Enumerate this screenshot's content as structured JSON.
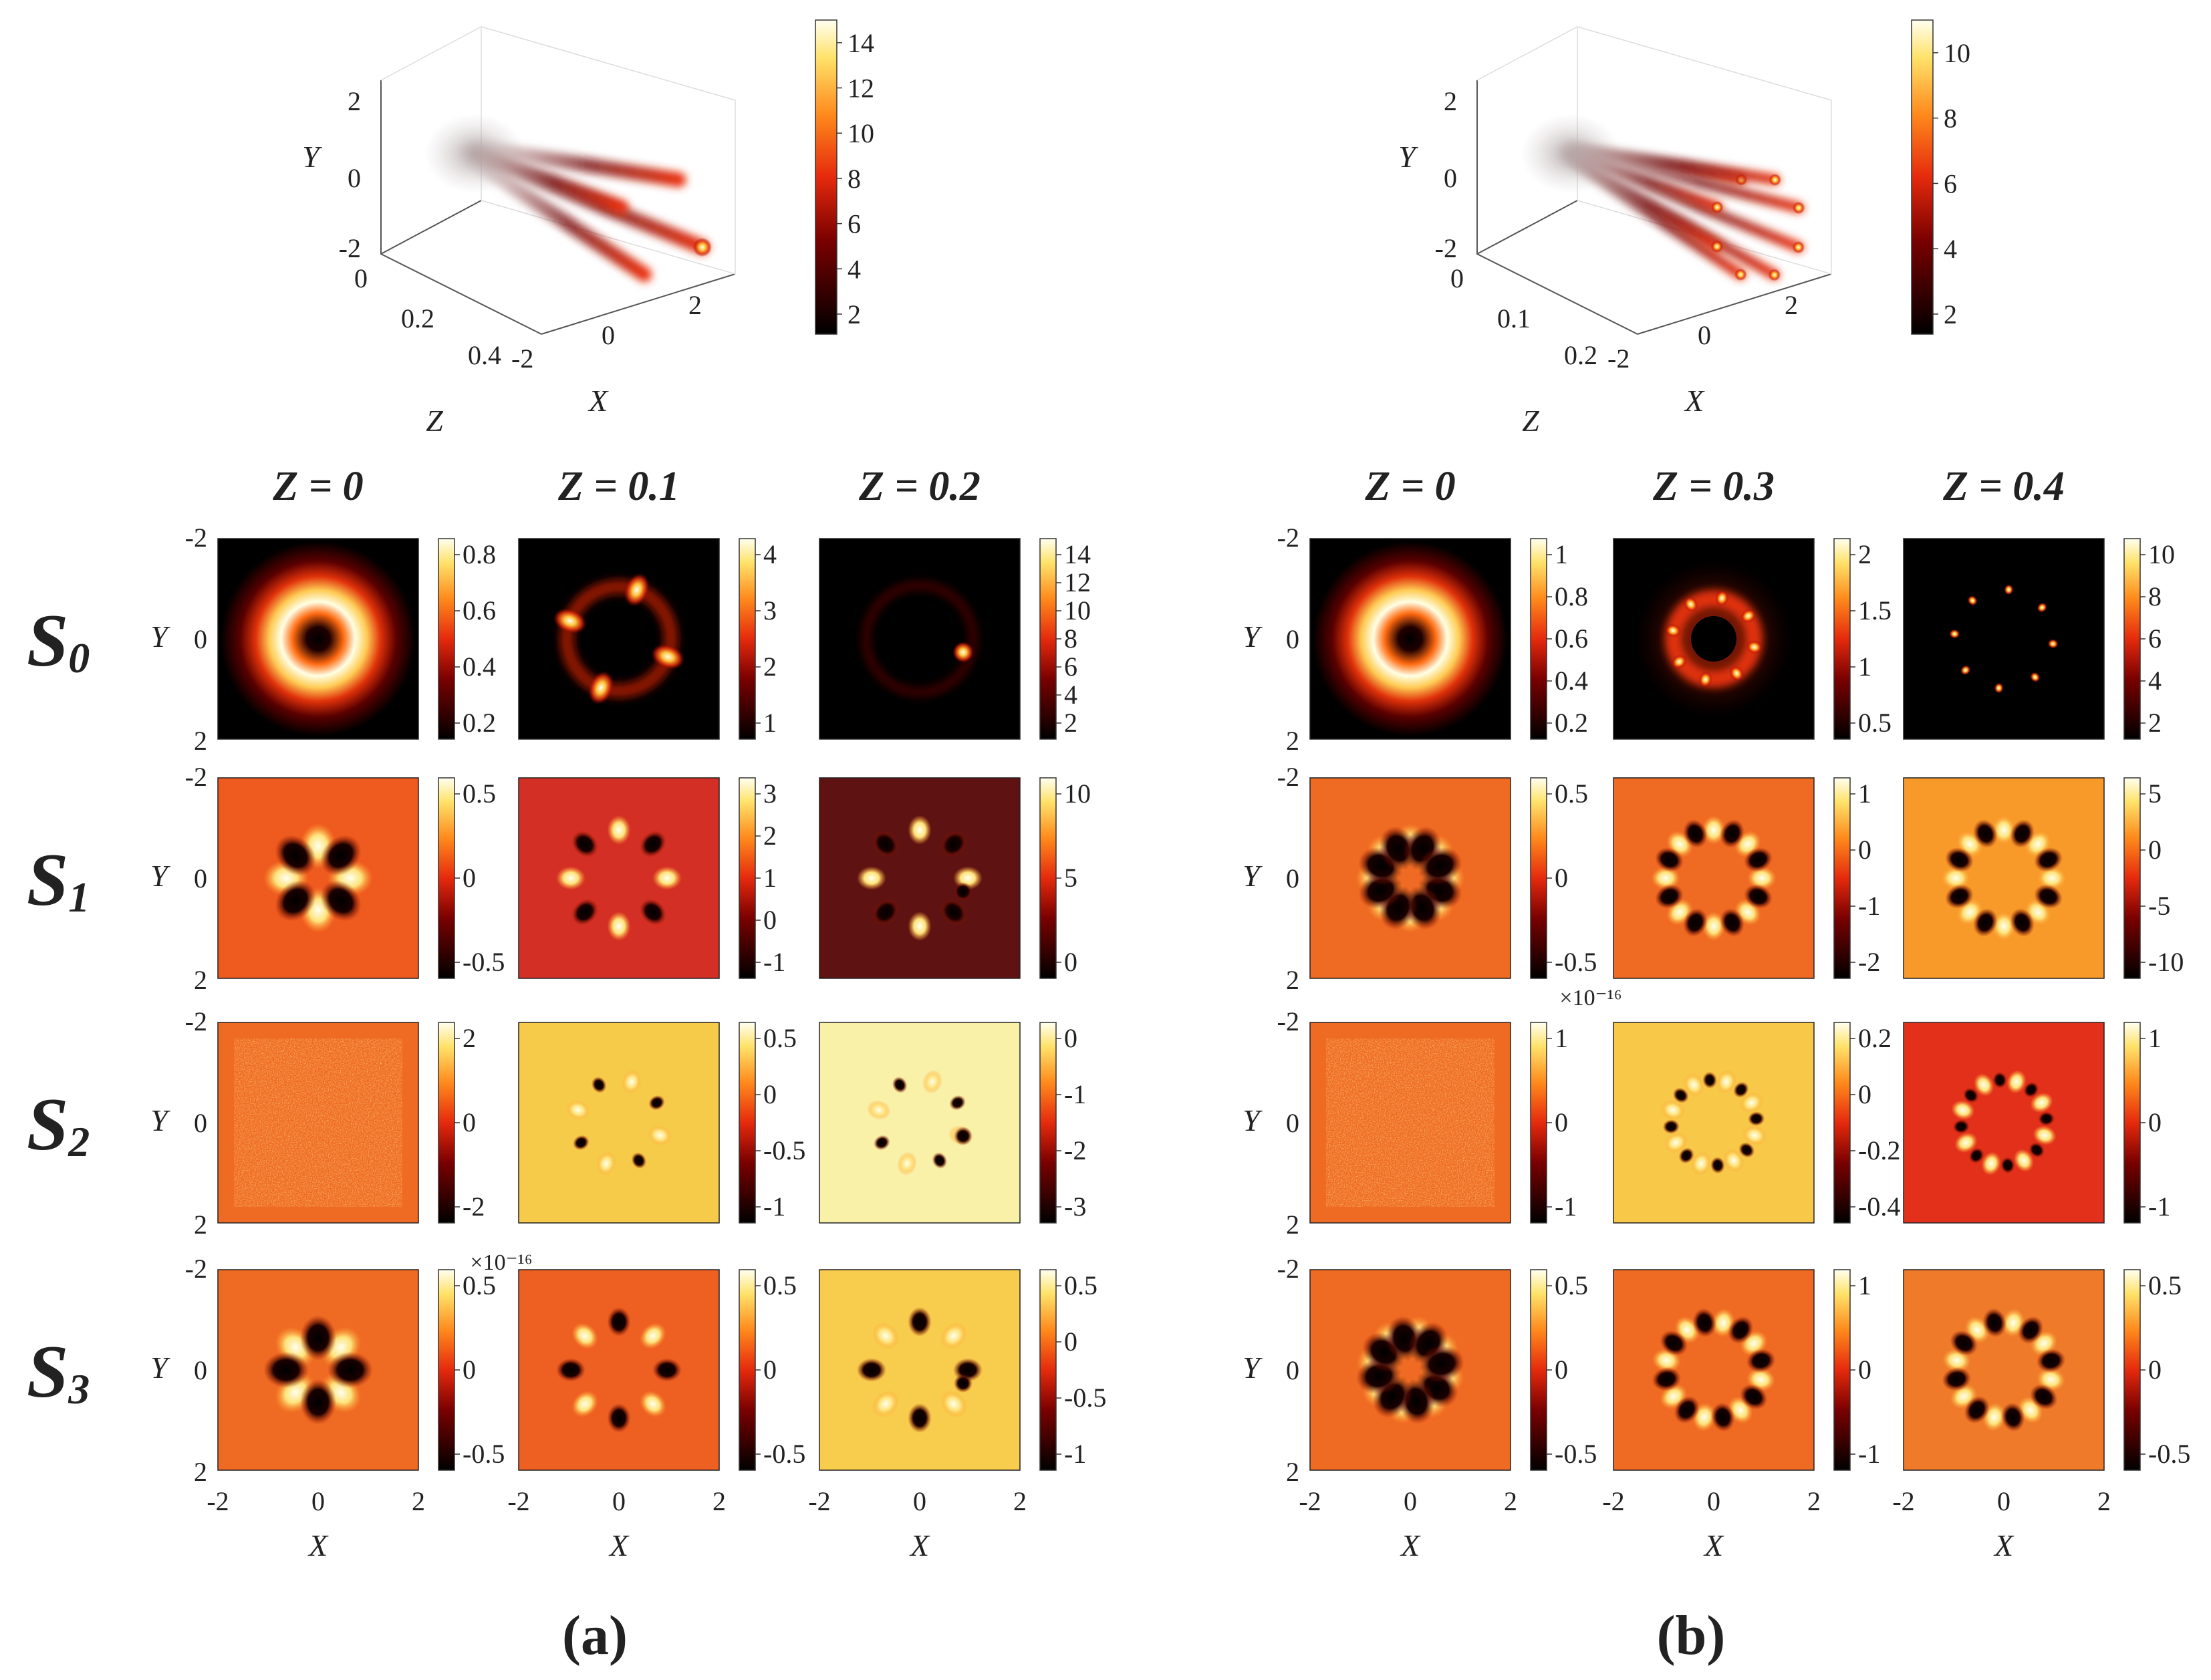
{
  "figure": {
    "panels": [
      {
        "label": "(a)",
        "beam3d": {
          "xlabel": "X",
          "ylabel": "Y",
          "zlabel": "Z",
          "x_ticks": [
            "-2",
            "0",
            "2"
          ],
          "y_ticks": [
            "-2",
            "0",
            "2"
          ],
          "z_ticks": [
            "0",
            "0.2",
            "0.4"
          ],
          "colorbar_ticks": [
            "2",
            "4",
            "6",
            "8",
            "10",
            "12",
            "14"
          ],
          "n_beams": 4
        },
        "columns": [
          "Z = 0",
          "Z = 0.1",
          "Z = 0.2"
        ],
        "x_ticks": [
          "-2",
          "0",
          "2"
        ],
        "y_ticks": [
          "-2",
          "0",
          "2"
        ],
        "xlabel": "X",
        "ylabel": "Y",
        "rows": [
          {
            "label": "S",
            "sub": "0",
            "colorbars": [
              [
                "0.8",
                "0.6",
                "0.4",
                "0.2"
              ],
              [
                "4",
                "3",
                "2",
                "1"
              ],
              [
                "14",
                "12",
                "10",
                "8",
                "6",
                "4",
                "2"
              ]
            ]
          },
          {
            "label": "S",
            "sub": "1",
            "colorbars": [
              [
                "0.5",
                "0",
                "-0.5"
              ],
              [
                "3",
                "2",
                "1",
                "0",
                "-1"
              ],
              [
                "10",
                "5",
                "0"
              ]
            ]
          },
          {
            "label": "S",
            "sub": "2",
            "colorbars": [
              [
                "2",
                "0",
                "-2"
              ],
              [
                "0.5",
                "0",
                "-0.5",
                "-1"
              ],
              [
                "0",
                "-1",
                "-2",
                "-3"
              ]
            ]
          },
          {
            "label": "S",
            "sub": "3",
            "colorbars": [
              [
                "0.5",
                "0",
                "-0.5"
              ],
              [
                "0.5",
                "0",
                "-0.5"
              ],
              [
                "0.5",
                "0",
                "-0.5",
                "-1"
              ]
            ]
          }
        ],
        "exponent_note": "×10⁻¹⁶"
      },
      {
        "label": "(b)",
        "beam3d": {
          "xlabel": "X",
          "ylabel": "Y",
          "zlabel": "Z",
          "x_ticks": [
            "-2",
            "0",
            "2"
          ],
          "y_ticks": [
            "-2",
            "0",
            "2"
          ],
          "z_ticks": [
            "0",
            "0.1",
            "0.2"
          ],
          "colorbar_ticks": [
            "2",
            "4",
            "6",
            "8",
            "10"
          ],
          "n_beams": 8
        },
        "columns": [
          "Z = 0",
          "Z = 0.3",
          "Z = 0.4"
        ],
        "x_ticks": [
          "-2",
          "0",
          "2"
        ],
        "y_ticks": [
          "-2",
          "0",
          "2"
        ],
        "xlabel": "X",
        "ylabel": "Y",
        "rows": [
          {
            "colorbars": [
              [
                "1",
                "0.8",
                "0.6",
                "0.4",
                "0.2"
              ],
              [
                "2",
                "1.5",
                "1",
                "0.5"
              ],
              [
                "10",
                "8",
                "6",
                "4",
                "2"
              ]
            ]
          },
          {
            "colorbars": [
              [
                "0.5",
                "0",
                "-0.5"
              ],
              [
                "1",
                "0",
                "-1",
                "-2"
              ],
              [
                "5",
                "0",
                "-5",
                "-10"
              ]
            ]
          },
          {
            "colorbars": [
              [
                "1",
                "0",
                "-1"
              ],
              [
                "0.2",
                "0",
                "-0.2",
                "-0.4"
              ],
              [
                "1",
                "0",
                "-1"
              ]
            ]
          },
          {
            "colorbars": [
              [
                "0.5",
                "0",
                "-0.5"
              ],
              [
                "1",
                "0",
                "-1"
              ],
              [
                "0.5",
                "0",
                "-0.5"
              ]
            ]
          }
        ],
        "exponent_note": "×10⁻¹⁶"
      }
    ]
  }
}
